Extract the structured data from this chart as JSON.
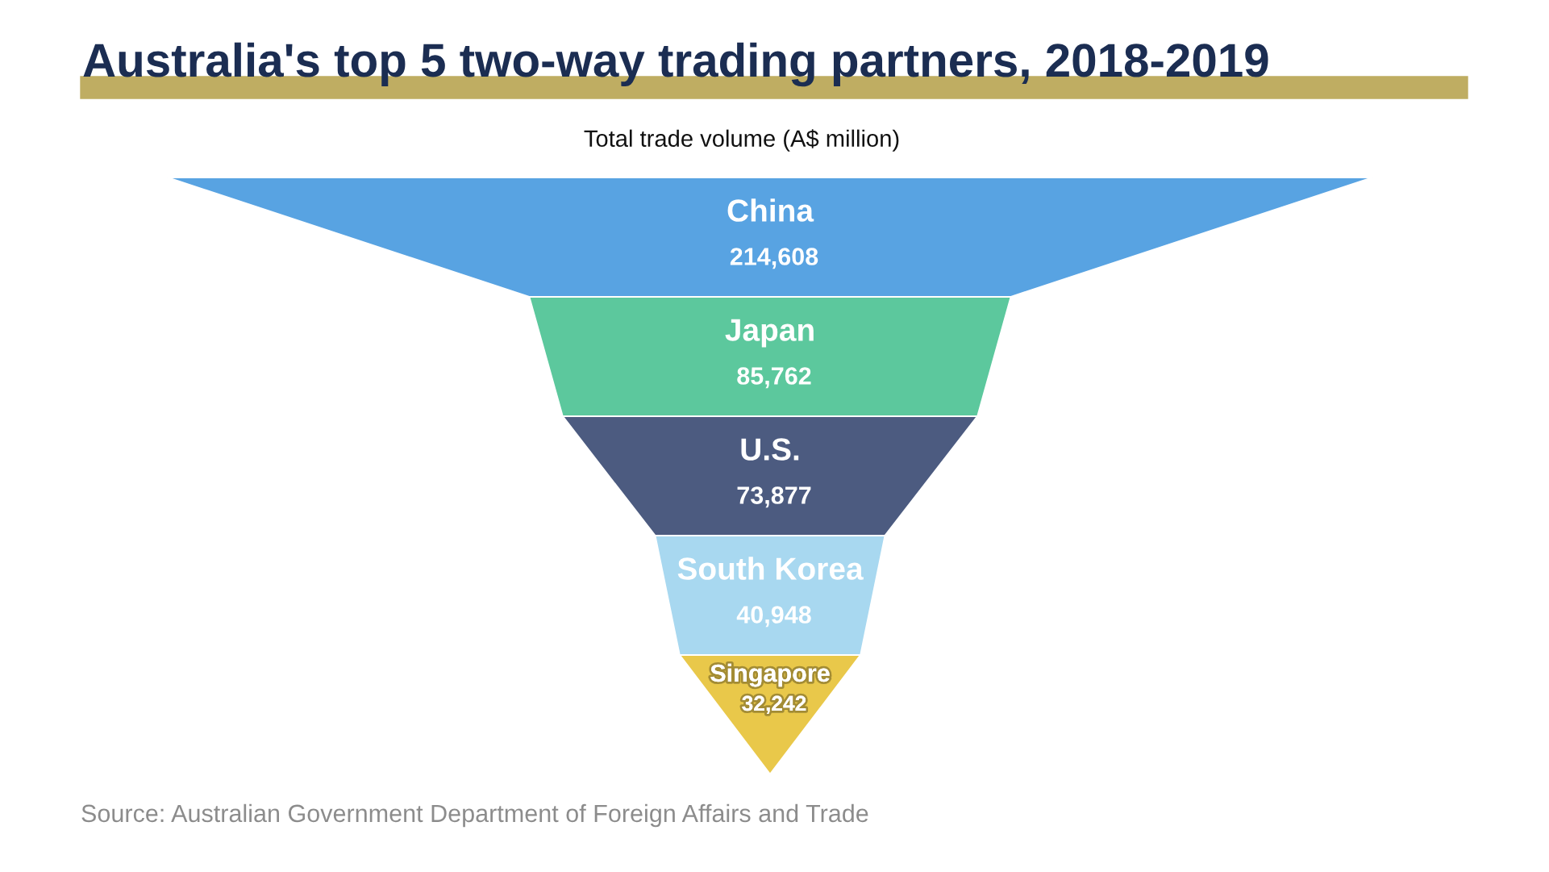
{
  "chart_data": {
    "type": "other",
    "title": "Australia's top 5 two-way trading partners, 2018-2019",
    "subtitle": "Total trade volume (A$ million)",
    "categories": [
      "China",
      "Japan",
      "U.S.",
      "South Korea",
      "Singapore"
    ],
    "values": [
      214608,
      85762,
      73877,
      40948,
      32242
    ],
    "value_labels": [
      "214,608",
      "85,762",
      "73,877",
      "40,948",
      "32,242"
    ],
    "colors": [
      "#58a3e2",
      "#5cc89d",
      "#4c5b80",
      "#a8d8f0",
      "#e9c84a"
    ],
    "annotations": [
      "Source: Australian Government Department of Foreign Affairs and Trade"
    ]
  }
}
